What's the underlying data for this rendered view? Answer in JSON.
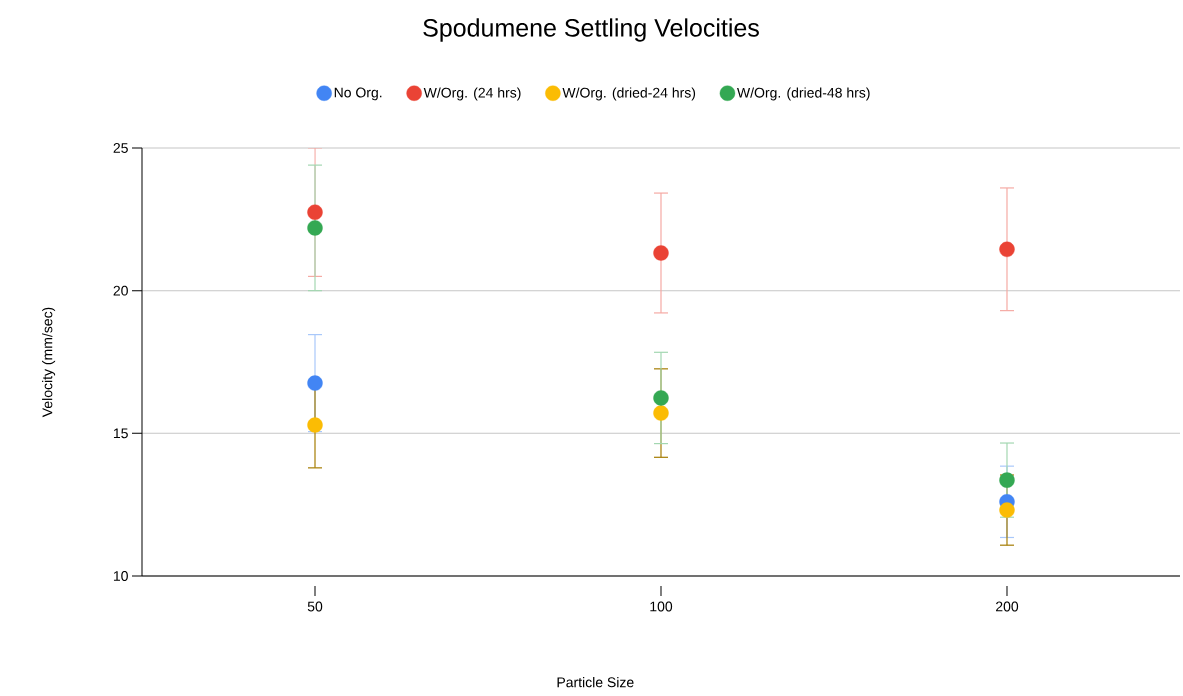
{
  "chart_data": {
    "type": "scatter",
    "title": "Spodumene Settling Velocities",
    "xlabel": "Particle Size",
    "ylabel": "Velocity (mm/sec)",
    "categories": [
      "50",
      "100",
      "200"
    ],
    "series": [
      {
        "name": "No Org.",
        "color": "#4285f4",
        "values": [
          16.76,
          null,
          12.6
        ],
        "errors": [
          1.7,
          null,
          1.25
        ]
      },
      {
        "name": "W/Org. (24 hrs)",
        "color": "#ea4335",
        "values": [
          22.75,
          21.32,
          21.45
        ],
        "errors": [
          2.25,
          2.1,
          2.15
        ]
      },
      {
        "name": "W/Org. (dried-24 hrs)",
        "color": "#fbbc04",
        "values": [
          15.29,
          15.71,
          12.31
        ],
        "errors": [
          1.5,
          1.55,
          1.23
        ]
      },
      {
        "name": "W/Org. (dried-48 hrs)",
        "color": "#34a853",
        "values": [
          22.2,
          16.24,
          13.36
        ],
        "errors": [
          2.2,
          1.6,
          1.3
        ]
      }
    ],
    "ylim": [
      10,
      25
    ],
    "yticks": [
      10,
      15,
      20,
      25
    ],
    "grid": "y",
    "legend": "top",
    "marker": "circle"
  }
}
